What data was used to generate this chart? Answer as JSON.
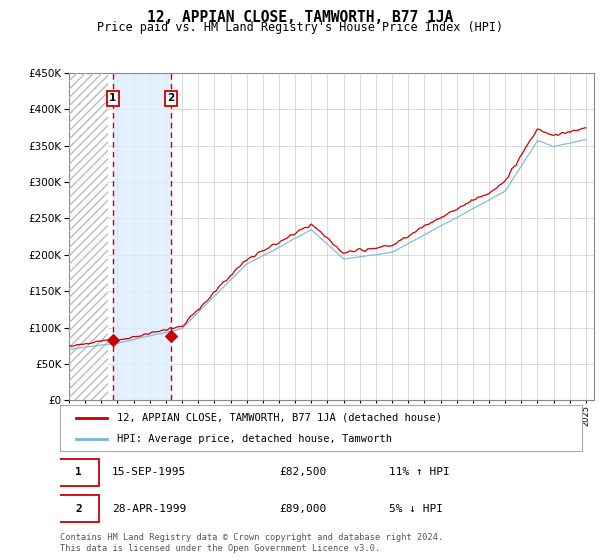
{
  "title": "12, APPIAN CLOSE, TAMWORTH, B77 1JA",
  "subtitle": "Price paid vs. HM Land Registry's House Price Index (HPI)",
  "ylim": [
    0,
    450000
  ],
  "yticks": [
    0,
    50000,
    100000,
    150000,
    200000,
    250000,
    300000,
    350000,
    400000,
    450000
  ],
  "t1_year": 1995.71,
  "t2_year": 1999.32,
  "t1_price": 82500,
  "t2_price": 89000,
  "hpi_color": "#7ab4d8",
  "price_color": "#cc0000",
  "shade_color": "#ddeeff",
  "legend_label_price": "12, APPIAN CLOSE, TAMWORTH, B77 1JA (detached house)",
  "legend_label_hpi": "HPI: Average price, detached house, Tamworth",
  "footer": "Contains HM Land Registry data © Crown copyright and database right 2024.\nThis data is licensed under the Open Government Licence v3.0.",
  "note1_date": "15-SEP-1995",
  "note1_price": "£82,500",
  "note1_hpi": "11% ↑ HPI",
  "note2_date": "28-APR-1999",
  "note2_price": "£89,000",
  "note2_hpi": "5% ↓ HPI"
}
